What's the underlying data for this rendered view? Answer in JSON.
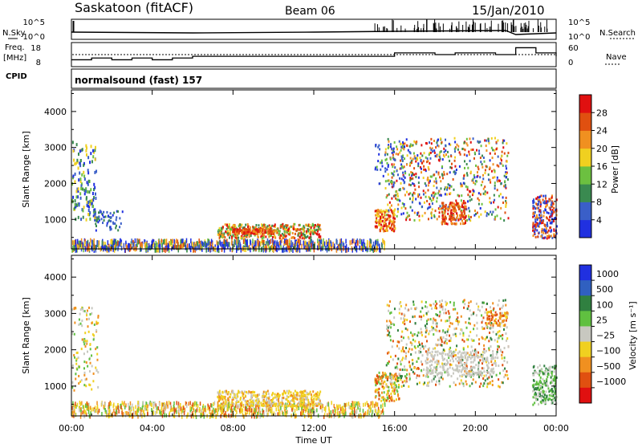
{
  "header": {
    "station": "Saskatoon (fitACF)",
    "beam": "Beam 06",
    "date": "15/Jan/2010"
  },
  "top_panel_labels": {
    "nsky": "N.Sky",
    "freq_line1": "Freq.",
    "freq_line2": "[MHz]",
    "cpid": "CPID",
    "nsearch": "N.Search",
    "nave": "Nave",
    "cpid_value": "normalsound (fast) 157"
  },
  "colors": {
    "power_scale": [
      "#2030e0",
      "#3a5fc8",
      "#3a8a50",
      "#6cc040",
      "#f0d020",
      "#f09020",
      "#e05010",
      "#e01010"
    ],
    "velocity_scale": [
      "#2030e0",
      "#3060c0",
      "#308040",
      "#60c040",
      "#c8c8c0",
      "#f0d020",
      "#f09020",
      "#e05010",
      "#e01010"
    ]
  },
  "chart_data": [
    {
      "type": "line",
      "name": "sky-noise-panel",
      "yticks_left": [
        "10^5",
        "10^0"
      ],
      "yticks_right": [
        "10^5",
        "10^0"
      ]
    },
    {
      "type": "line",
      "name": "frequency-panel",
      "yticks_left": [
        "18",
        "8"
      ],
      "yticks_right": [
        "60",
        "0"
      ],
      "freq_step_hours": [
        0,
        1,
        2,
        3,
        4,
        5,
        6,
        7,
        8,
        9,
        10,
        11,
        12,
        13,
        14,
        15,
        16,
        17,
        18,
        19,
        20,
        21,
        22,
        23,
        24
      ],
      "freq_values": [
        10,
        11,
        10,
        11,
        10,
        11,
        12,
        12,
        12,
        12,
        12,
        12,
        12,
        12,
        12,
        12,
        14,
        14,
        13,
        14,
        14,
        13,
        17,
        14,
        12
      ]
    },
    {
      "type": "heatmap",
      "name": "power",
      "ylabel": "Slant Range [km]",
      "yticks": [
        "1000",
        "2000",
        "3000",
        "4000"
      ],
      "ylim": [
        180,
        4600
      ],
      "colorbar_label": "Power [dB]",
      "colorbar_ticks": [
        "4",
        "8",
        "12",
        "16",
        "20",
        "24",
        "28"
      ],
      "xticks": [
        "00:00",
        "04:00",
        "08:00",
        "12:00",
        "16:00",
        "20:00",
        "00:00"
      ]
    },
    {
      "type": "heatmap",
      "name": "velocity",
      "ylabel": "Slant Range [km]",
      "yticks": [
        "1000",
        "2000",
        "3000",
        "4000"
      ],
      "ylim": [
        180,
        4600
      ],
      "colorbar_label": "Velocity [m s⁻¹]",
      "colorbar_ticks": [
        "1000",
        "500",
        "100",
        "25",
        "−25",
        "−100",
        "−500",
        "−1000"
      ],
      "xticks": [
        "00:00",
        "04:00",
        "08:00",
        "12:00",
        "16:00",
        "20:00",
        "00:00"
      ],
      "xlabel": "Time UT"
    }
  ]
}
